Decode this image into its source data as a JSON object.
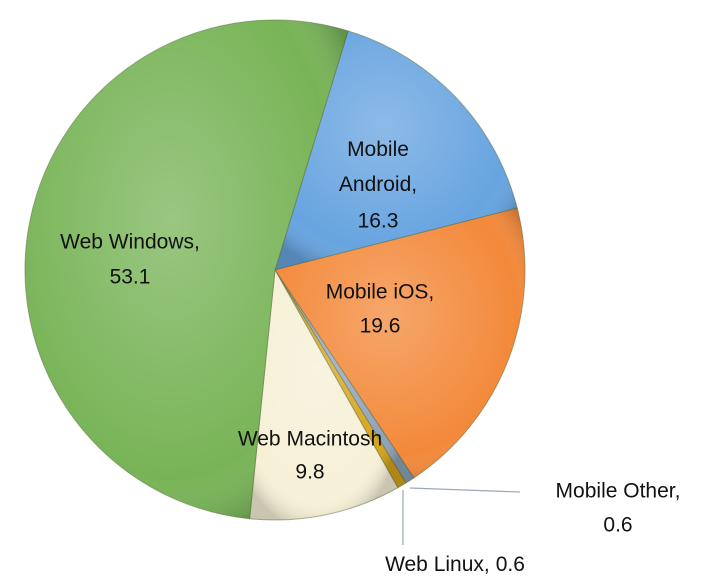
{
  "chart_data": {
    "type": "pie",
    "categories": [
      "Mobile Android,",
      "Mobile iOS,",
      "Mobile Other,",
      "Web Linux,",
      "Web Macintosh",
      "Web Windows,"
    ],
    "values": [
      16.3,
      19.6,
      0.6,
      0.6,
      9.8,
      53.1
    ],
    "colors": [
      "#67a4e0",
      "#f3893a",
      "#8ea2b8",
      "#d6a418",
      "#f6f0d6",
      "#78b457"
    ]
  }
}
